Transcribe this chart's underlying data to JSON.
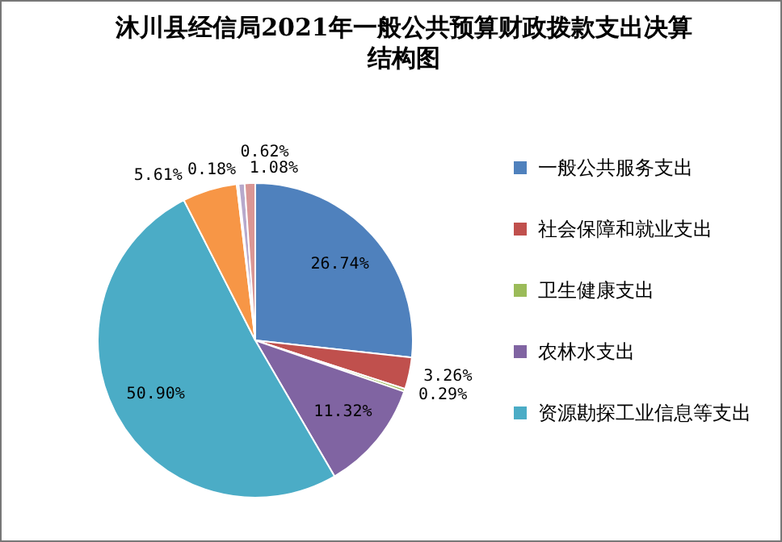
{
  "chart_data": {
    "type": "pie",
    "title": "沐川县经信局2021年一般公共预算财政拨款支出决算结构图",
    "categories": [
      "一般公共服务支出",
      "社会保障和就业支出",
      "卫生健康支出",
      "农林水支出",
      "资源勘探工业信息等支出",
      null,
      null,
      null,
      null
    ],
    "values": [
      26.74,
      3.26,
      0.29,
      11.32,
      50.9,
      5.61,
      0.18,
      0.62,
      1.08
    ],
    "colors": [
      "#4f81bd",
      "#c0504d",
      "#9bbb59",
      "#8064a2",
      "#4bacc6",
      "#f79646",
      "#95b3d7",
      "#b7a9cc",
      "#da9694"
    ],
    "value_labels": [
      "26.74%",
      "3.26%",
      "0.29%",
      "11.32%",
      "50.90%",
      "5.61%",
      "0.18%",
      "0.62%",
      "1.08%"
    ],
    "legend": "right"
  }
}
